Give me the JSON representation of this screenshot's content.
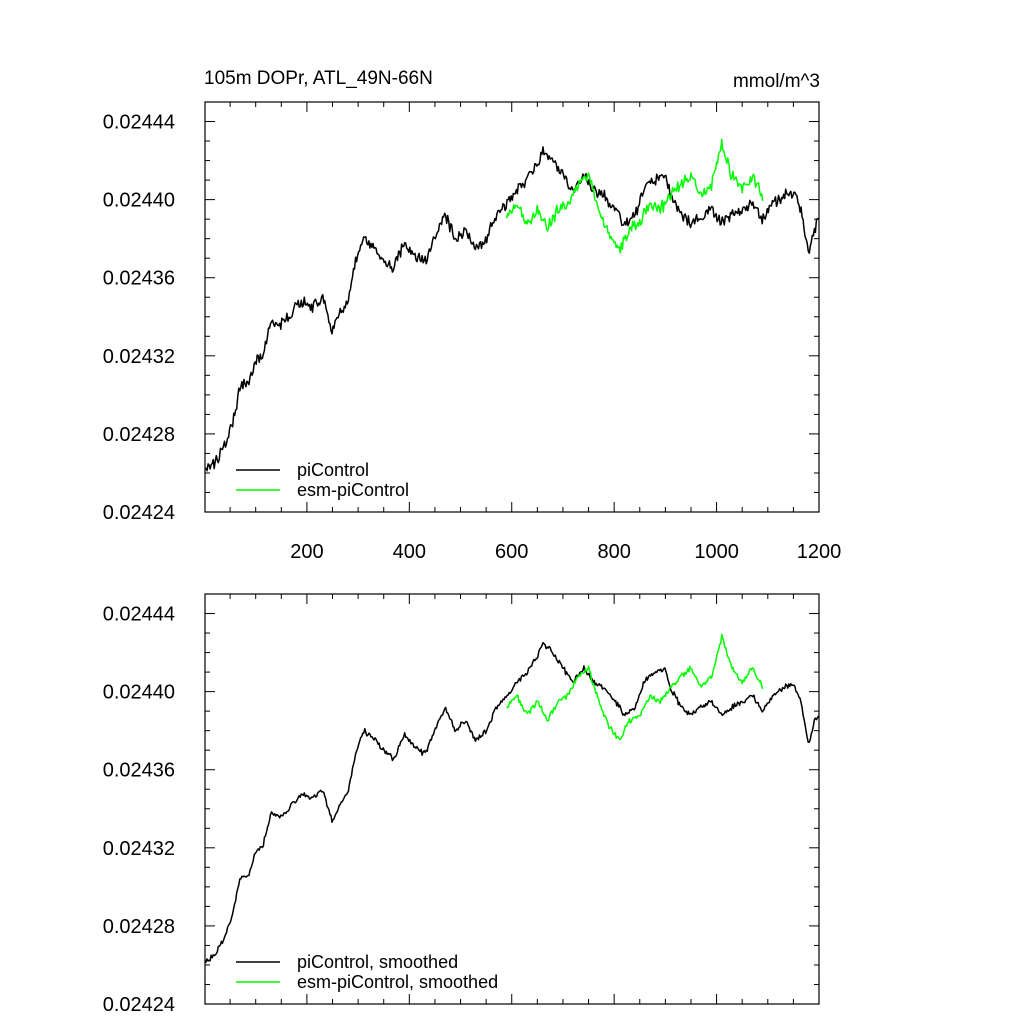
{
  "chart_data": [
    {
      "type": "line",
      "title": "105m DOPr, ATL_49N-66N",
      "units": "mmol/m^3",
      "xlabel": "",
      "ylabel": "",
      "xlim": [
        1,
        1200
      ],
      "ylim": [
        0.02424,
        0.02445
      ],
      "x_ticks": [
        200,
        400,
        600,
        800,
        1000,
        1200
      ],
      "x_tick_labels": [
        "200",
        "400",
        "600",
        "800",
        "1000",
        "1200"
      ],
      "y_ticks": [
        0.02424,
        0.02428,
        0.02432,
        0.02436,
        0.0244,
        0.02444
      ],
      "y_tick_labels": [
        "0.02424",
        "0.02428",
        "0.02432",
        "0.02436",
        "0.02440",
        "0.02444"
      ],
      "grid": false,
      "legend_position": "bottom-left",
      "series": [
        {
          "name": "piControl",
          "color": "#000000",
          "x": [
            1,
            20,
            40,
            55,
            70,
            85,
            100,
            115,
            130,
            150,
            170,
            190,
            210,
            230,
            250,
            265,
            280,
            295,
            310,
            330,
            350,
            370,
            390,
            410,
            430,
            450,
            470,
            490,
            510,
            530,
            550,
            570,
            590,
            610,
            630,
            650,
            660,
            680,
            700,
            720,
            740,
            760,
            780,
            800,
            820,
            840,
            860,
            880,
            900,
            910,
            930,
            950,
            970,
            990,
            1010,
            1030,
            1050,
            1070,
            1090,
            1110,
            1130,
            1150,
            1165,
            1180,
            1190,
            1200
          ],
          "y": [
            0.024262,
            0.024265,
            0.024275,
            0.024285,
            0.024305,
            0.024305,
            0.024318,
            0.024322,
            0.024338,
            0.024336,
            0.024342,
            0.024348,
            0.024345,
            0.02435,
            0.024333,
            0.024342,
            0.024348,
            0.024368,
            0.02438,
            0.024376,
            0.02437,
            0.024365,
            0.024378,
            0.024372,
            0.024368,
            0.02438,
            0.024392,
            0.02438,
            0.024385,
            0.024375,
            0.02438,
            0.024392,
            0.024398,
            0.024405,
            0.02441,
            0.024418,
            0.024425,
            0.02442,
            0.024412,
            0.024405,
            0.024412,
            0.024405,
            0.024402,
            0.024396,
            0.024388,
            0.024392,
            0.024406,
            0.02441,
            0.024412,
            0.024402,
            0.024392,
            0.024388,
            0.024392,
            0.024395,
            0.024388,
            0.024392,
            0.024395,
            0.024398,
            0.02439,
            0.024398,
            0.024402,
            0.024404,
            0.024395,
            0.024372,
            0.024385,
            0.024388
          ]
        },
        {
          "name": "esm-piControl",
          "color": "#00ff00",
          "x": [
            590,
            610,
            630,
            650,
            670,
            690,
            710,
            730,
            750,
            770,
            790,
            810,
            830,
            850,
            870,
            890,
            910,
            930,
            950,
            970,
            990,
            1010,
            1030,
            1050,
            1070,
            1090
          ],
          "y": [
            0.024392,
            0.024398,
            0.024388,
            0.024395,
            0.024385,
            0.024395,
            0.024398,
            0.024408,
            0.024412,
            0.024395,
            0.024382,
            0.024375,
            0.024385,
            0.024388,
            0.024398,
            0.024395,
            0.024402,
            0.024408,
            0.024412,
            0.024402,
            0.024408,
            0.024428,
            0.024412,
            0.024405,
            0.024412,
            0.024402
          ]
        }
      ]
    },
    {
      "type": "line",
      "title": "",
      "xlabel": "",
      "ylabel": "",
      "xlim": [
        1,
        1200
      ],
      "ylim": [
        0.02424,
        0.02445
      ],
      "y_ticks": [
        0.02424,
        0.02428,
        0.02432,
        0.02436,
        0.0244,
        0.02444
      ],
      "y_tick_labels": [
        "0.02424",
        "0.02428",
        "0.02432",
        "0.02436",
        "0.02440",
        "0.02444"
      ],
      "grid": false,
      "legend_position": "bottom-left",
      "series": [
        {
          "name": "piControl, smoothed",
          "color": "#000000",
          "x": [
            1,
            20,
            40,
            55,
            70,
            85,
            100,
            115,
            130,
            150,
            170,
            190,
            210,
            230,
            250,
            265,
            280,
            295,
            310,
            330,
            350,
            370,
            390,
            410,
            430,
            450,
            470,
            490,
            510,
            530,
            550,
            570,
            590,
            610,
            630,
            650,
            660,
            680,
            700,
            720,
            740,
            760,
            780,
            800,
            820,
            840,
            860,
            880,
            900,
            910,
            930,
            950,
            970,
            990,
            1010,
            1030,
            1050,
            1070,
            1090,
            1110,
            1130,
            1150,
            1165,
            1180,
            1190,
            1200
          ],
          "y": [
            0.024262,
            0.024265,
            0.024275,
            0.024285,
            0.024305,
            0.024305,
            0.024318,
            0.024322,
            0.024338,
            0.024336,
            0.024342,
            0.024348,
            0.024345,
            0.02435,
            0.024333,
            0.024342,
            0.024348,
            0.024368,
            0.02438,
            0.024376,
            0.02437,
            0.024365,
            0.024378,
            0.024372,
            0.024368,
            0.02438,
            0.024392,
            0.02438,
            0.024385,
            0.024375,
            0.02438,
            0.024392,
            0.024398,
            0.024405,
            0.02441,
            0.024418,
            0.024425,
            0.02442,
            0.024412,
            0.024405,
            0.024412,
            0.024405,
            0.024402,
            0.024396,
            0.024388,
            0.024392,
            0.024406,
            0.02441,
            0.024412,
            0.024402,
            0.024392,
            0.024388,
            0.024392,
            0.024395,
            0.024388,
            0.024392,
            0.024395,
            0.024398,
            0.02439,
            0.024398,
            0.024402,
            0.024404,
            0.024395,
            0.024372,
            0.024385,
            0.024388
          ]
        },
        {
          "name": "esm-piControl, smoothed",
          "color": "#00ff00",
          "x": [
            590,
            610,
            630,
            650,
            670,
            690,
            710,
            730,
            750,
            770,
            790,
            810,
            830,
            850,
            870,
            890,
            910,
            930,
            950,
            970,
            990,
            1010,
            1030,
            1050,
            1070,
            1090
          ],
          "y": [
            0.024392,
            0.024398,
            0.024388,
            0.024395,
            0.024385,
            0.024395,
            0.024398,
            0.024408,
            0.024412,
            0.024395,
            0.024382,
            0.024375,
            0.024385,
            0.024388,
            0.024398,
            0.024395,
            0.024402,
            0.024408,
            0.024412,
            0.024402,
            0.024408,
            0.024428,
            0.024412,
            0.024405,
            0.024412,
            0.024402
          ]
        }
      ]
    }
  ]
}
